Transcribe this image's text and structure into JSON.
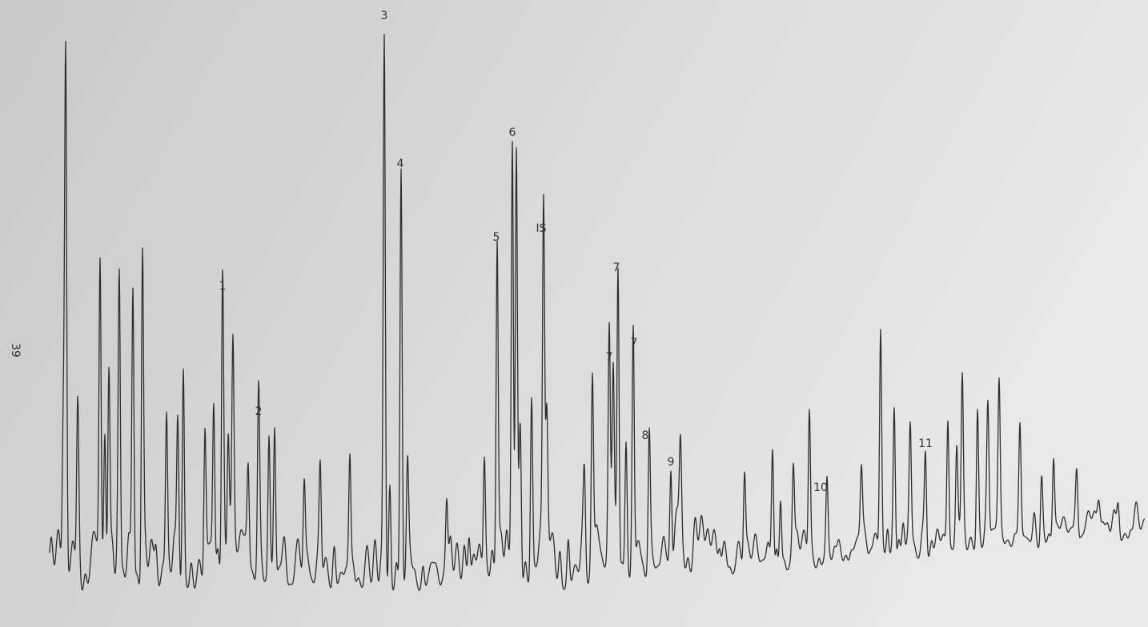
{
  "page_number": "39",
  "peaks": [
    {
      "label": "1"
    },
    {
      "label": "2"
    },
    {
      "label": "3"
    },
    {
      "label": "4"
    },
    {
      "label": "5"
    },
    {
      "label": "6"
    },
    {
      "label": "IS"
    },
    {
      "label": "7"
    },
    {
      "label": "7"
    },
    {
      "label": "7"
    },
    {
      "label": "8"
    },
    {
      "label": "9"
    },
    {
      "label": "10"
    },
    {
      "label": "11"
    }
  ]
}
